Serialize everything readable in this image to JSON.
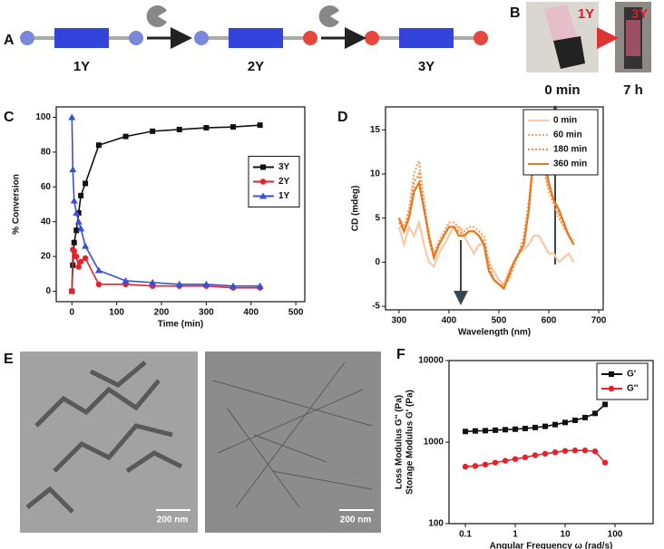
{
  "scheme": {
    "label": "A",
    "molecules": [
      "1Y",
      "2Y",
      "3Y"
    ]
  },
  "photos": {
    "label": "B",
    "samples": [
      {
        "tag": "1Y",
        "time": "0 min"
      },
      {
        "tag": "3Y",
        "time": "7 h"
      }
    ]
  },
  "micrographs": {
    "label": "E",
    "scale_bars": [
      "200 nm",
      "200 nm"
    ]
  },
  "chart_data": [
    {
      "type": "line",
      "label": "C",
      "xlabel": "Time (min)",
      "ylabel": "% Conversion",
      "x": [
        0,
        2,
        5,
        10,
        15,
        20,
        30,
        60,
        120,
        180,
        240,
        300,
        360,
        420
      ],
      "series": [
        {
          "name": "3Y",
          "color": "#111111",
          "marker": "square",
          "values": [
            0,
            15,
            28,
            35,
            45,
            55,
            62,
            84,
            89,
            92,
            93,
            94,
            94.5,
            95.5
          ]
        },
        {
          "name": "2Y",
          "color": "#e8202a",
          "marker": "circle",
          "values": [
            0,
            24,
            23,
            20,
            14,
            17,
            19,
            4,
            4,
            3,
            3,
            3,
            2,
            2
          ]
        },
        {
          "name": "1Y",
          "color": "#3a4fd8",
          "marker": "triangle",
          "values": [
            100,
            70,
            52,
            45,
            40,
            36,
            26,
            12,
            6,
            5,
            4,
            4,
            3,
            3
          ]
        }
      ],
      "xlim": [
        -35,
        520
      ],
      "xticks": [
        0,
        100,
        200,
        300,
        400,
        500
      ],
      "ylim": [
        -6,
        106
      ],
      "yticks": [
        0,
        20,
        40,
        60,
        80,
        100
      ],
      "legend": "center right"
    },
    {
      "type": "line",
      "label": "D",
      "xlabel": "Wavelength (nm)",
      "ylabel": "CD (mdeg)",
      "x": [
        300,
        310,
        320,
        330,
        340,
        350,
        360,
        370,
        380,
        390,
        400,
        410,
        420,
        430,
        440,
        450,
        460,
        470,
        480,
        490,
        500,
        510,
        520,
        530,
        540,
        550,
        560,
        570,
        580,
        590,
        600,
        610,
        620,
        630,
        640,
        650
      ],
      "series": [
        {
          "name": "0 min",
          "color": "#f9c8a6",
          "style": "solid",
          "values": [
            4,
            2,
            4,
            3,
            4.5,
            2,
            0,
            -0.5,
            1,
            2,
            3,
            4,
            4,
            3,
            2,
            1,
            2,
            2,
            0,
            -1,
            -2,
            -2.5,
            -1,
            0,
            1,
            1.5,
            2,
            3,
            3,
            2,
            1,
            1,
            0,
            0.5,
            1,
            0
          ]
        },
        {
          "name": "60 min",
          "color": "#f4a46a",
          "style": "dotted",
          "values": [
            5,
            4,
            6,
            10,
            11.5,
            7,
            3,
            1,
            2.5,
            3.5,
            4.5,
            4.5,
            4,
            3.5,
            4,
            4,
            3.5,
            3,
            0,
            -2,
            -2.5,
            -2.5,
            -2,
            -0.5,
            1,
            3,
            7,
            11,
            12,
            10.5,
            8,
            6.5,
            5,
            4,
            3,
            2.5
          ]
        },
        {
          "name": "180 min",
          "color": "#f0904a",
          "style": "dotted",
          "values": [
            4.5,
            3.5,
            5.5,
            9,
            10,
            6.5,
            2.5,
            0.5,
            2,
            3,
            4,
            4,
            3.5,
            3,
            3.5,
            3.5,
            3,
            2.5,
            -0.5,
            -2,
            -2.5,
            -2.8,
            -1.8,
            0,
            1,
            2.5,
            6,
            12,
            14,
            11,
            8.5,
            7,
            5.5,
            4,
            3,
            2
          ]
        },
        {
          "name": "360 min",
          "color": "#e8781e",
          "style": "solid",
          "values": [
            5,
            3.5,
            5,
            8,
            9,
            6,
            3,
            0.5,
            2,
            3,
            4,
            4,
            3,
            3,
            3.5,
            3.5,
            3,
            2,
            -1,
            -2,
            -2.5,
            -3,
            -1.5,
            0,
            1,
            2,
            6,
            13,
            15,
            12,
            9,
            7,
            6,
            4.5,
            3,
            2
          ]
        }
      ],
      "xlim": [
        273,
        709
      ],
      "xticks": [
        300,
        400,
        500,
        600,
        700
      ],
      "ylim": [
        -5.4,
        17.6
      ],
      "yticks": [
        -5,
        0,
        5,
        10,
        15
      ],
      "legend": "upper right"
    },
    {
      "type": "line",
      "label": "F",
      "xlabel": "Angular Frequency ω (rad/s)",
      "ylabel": [
        "Storage Modulus G' (Pa)",
        "Loss Modulus G'' (Pa)"
      ],
      "x": [
        0.1,
        0.158,
        0.251,
        0.398,
        0.631,
        1,
        1.58,
        2.51,
        3.98,
        6.31,
        10,
        15.8,
        25.1,
        39.8,
        63.1
      ],
      "series": [
        {
          "name": "G'",
          "color": "#111111",
          "marker": "square",
          "values": [
            1350,
            1370,
            1380,
            1400,
            1420,
            1440,
            1470,
            1510,
            1560,
            1640,
            1740,
            1850,
            2000,
            2250,
            2900
          ]
        },
        {
          "name": "G''",
          "color": "#e8202a",
          "marker": "circle",
          "values": [
            500,
            510,
            530,
            560,
            590,
            620,
            650,
            690,
            720,
            750,
            780,
            790,
            790,
            770,
            560
          ]
        }
      ],
      "log_x": true,
      "log_y": true,
      "xlim": [
        0.047,
        580
      ],
      "xticks": [
        0.1,
        1,
        10,
        100
      ],
      "ylim": [
        100,
        10000
      ],
      "yticks": [
        100,
        1000,
        10000
      ],
      "legend": "upper right"
    }
  ]
}
